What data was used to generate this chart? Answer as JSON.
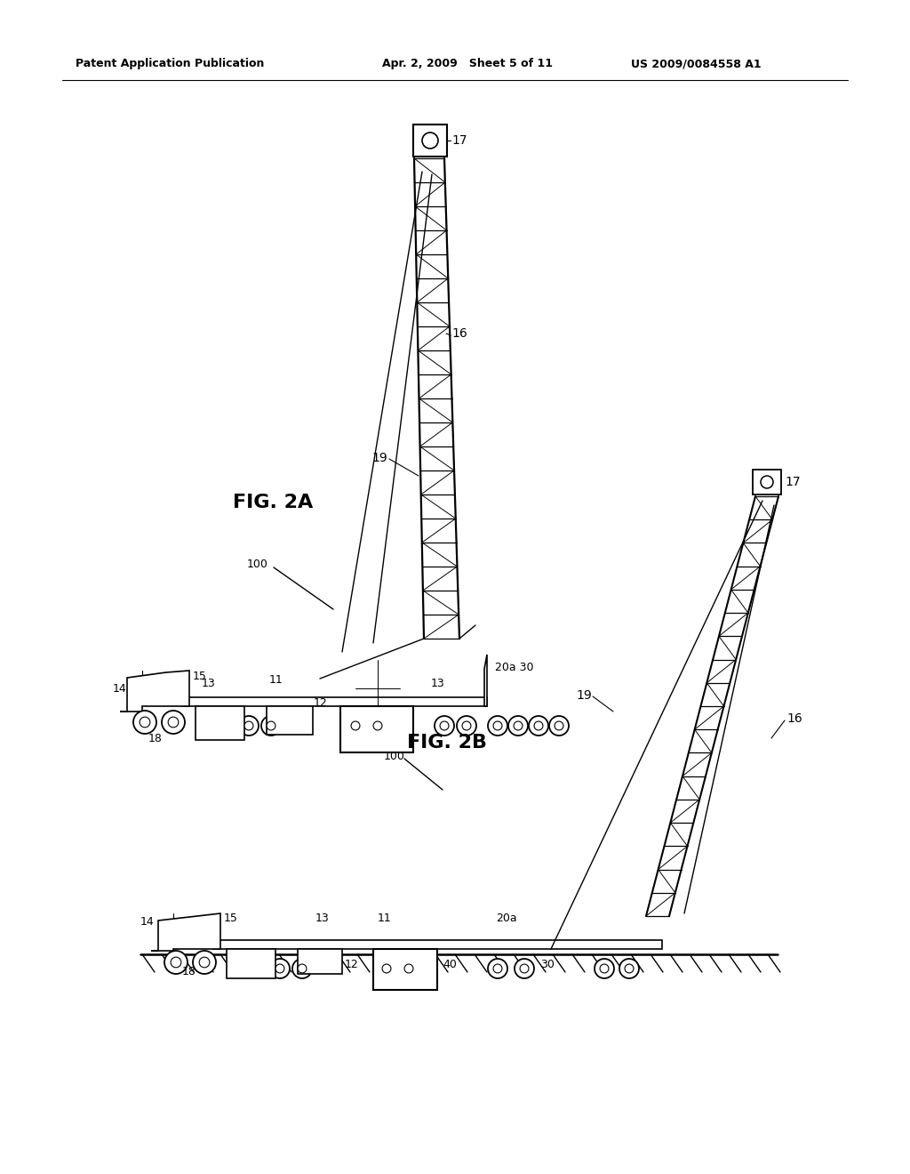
{
  "bg_color": "#ffffff",
  "header_left": "Patent Application Publication",
  "header_center": "Apr. 2, 2009   Sheet 5 of 11",
  "header_right": "US 2009/0084558 A1",
  "fig2a_label": "FIG. 2A",
  "fig2b_label": "FIG. 2B",
  "text_color": "#000000",
  "line_color": "#000000"
}
